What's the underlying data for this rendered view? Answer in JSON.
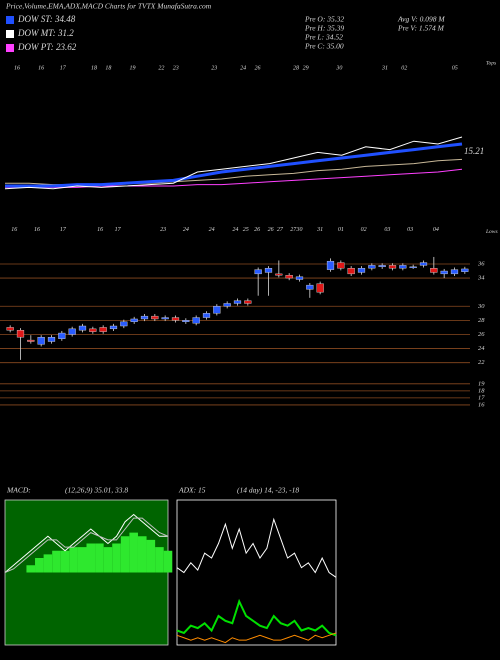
{
  "header": {
    "title": "Price,Volume,EMA,ADX,MACD Charts for TVTX MunafaSutra.com",
    "legend": [
      {
        "name": "DOW ST: 34.48",
        "color": "#2050ff"
      },
      {
        "name": "DOW MT: 31.2",
        "color": "#ffffff"
      },
      {
        "name": "DOW PT: 23.62",
        "color": "#ff40ff"
      }
    ],
    "stats_left": [
      "Pre O: 35.32",
      "Pre H: 35.39",
      "Pre L: 34.52",
      "Pre C: 35.00"
    ],
    "stats_right": [
      "Avg V: 0.098 M",
      "Pre V: 1.574 M"
    ]
  },
  "chart_data": [
    {
      "type": "line",
      "label": "Tops",
      "annotation": "15.21",
      "ylim": [
        0,
        100
      ],
      "xticks": [
        {
          "value": 0.5,
          "label": "16"
        },
        {
          "value": 1.5,
          "label": "16"
        },
        {
          "value": 2.4,
          "label": "17"
        },
        {
          "value": 3.7,
          "label": "18"
        },
        {
          "value": 4.3,
          "label": "18"
        },
        {
          "value": 5.3,
          "label": "19"
        },
        {
          "value": 6.5,
          "label": "22"
        },
        {
          "value": 7.1,
          "label": "23"
        },
        {
          "value": 8.7,
          "label": "23"
        },
        {
          "value": 9.9,
          "label": "24"
        },
        {
          "value": 10.5,
          "label": "26"
        },
        {
          "value": 12.1,
          "label": "28"
        },
        {
          "value": 12.5,
          "label": "29"
        },
        {
          "value": 13.9,
          "label": "30"
        },
        {
          "value": 15.8,
          "label": "31"
        },
        {
          "value": 16.6,
          "label": "02"
        },
        {
          "value": 18.7,
          "label": "05"
        }
      ],
      "series": [
        {
          "color": "#ff40ff",
          "values": [
            9,
            9,
            9,
            9,
            10,
            10,
            10,
            10,
            11,
            11,
            12,
            13,
            14,
            15,
            16,
            17,
            18,
            19,
            20,
            22
          ]
        },
        {
          "color": "#c8b898",
          "values": [
            12,
            12,
            11,
            11,
            11,
            12,
            12,
            13,
            14,
            15,
            17,
            18,
            19,
            21,
            22,
            24,
            25,
            26,
            28,
            29
          ]
        },
        {
          "color": "#2050ff",
          "width": 3,
          "values": [
            10,
            10,
            10,
            11,
            11,
            12,
            13,
            14,
            17,
            20,
            22,
            24,
            26,
            28,
            30,
            32,
            34,
            36,
            38,
            40
          ]
        },
        {
          "color": "#ffffff",
          "values": [
            8,
            9,
            8,
            10,
            9,
            10,
            11,
            12,
            20,
            22,
            24,
            26,
            30,
            34,
            32,
            38,
            36,
            42,
            40,
            45
          ]
        }
      ]
    },
    {
      "type": "candlestick",
      "label": "Lows",
      "ylim": [
        15,
        41
      ],
      "yticks": [
        36,
        34,
        30,
        28,
        26,
        24,
        22,
        19,
        18,
        17,
        16
      ],
      "up_color": "#2a5cff",
      "down_color": "#e01818",
      "grid_color": "#8a4a20",
      "xticks": [
        {
          "value": 0.4,
          "label": "16"
        },
        {
          "value": 2.6,
          "label": "16"
        },
        {
          "value": 5.1,
          "label": "17"
        },
        {
          "value": 8.7,
          "label": "16"
        },
        {
          "value": 10.4,
          "label": "17"
        },
        {
          "value": 14.8,
          "label": "23"
        },
        {
          "value": 17.0,
          "label": "24"
        },
        {
          "value": 19.5,
          "label": "24"
        },
        {
          "value": 21.8,
          "label": "24"
        },
        {
          "value": 22.8,
          "label": "25"
        },
        {
          "value": 23.9,
          "label": "26"
        },
        {
          "value": 25.2,
          "label": "26"
        },
        {
          "value": 26.1,
          "label": "27"
        },
        {
          "value": 27.4,
          "label": "27"
        },
        {
          "value": 28.0,
          "label": "30"
        },
        {
          "value": 30.0,
          "label": "31"
        },
        {
          "value": 32.0,
          "label": "01"
        },
        {
          "value": 34.2,
          "label": "02"
        },
        {
          "value": 36.5,
          "label": "03"
        },
        {
          "value": 38.7,
          "label": "03"
        },
        {
          "value": 41.2,
          "label": "04"
        }
      ],
      "open": [
        27.0,
        26.6,
        25.2,
        24.6,
        25.0,
        25.4,
        26.0,
        26.6,
        26.8,
        27.0,
        26.8,
        27.2,
        27.8,
        28.2,
        28.6,
        28.2,
        28.4,
        27.8,
        27.6,
        28.4,
        29.0,
        30.0,
        30.4,
        30.8,
        34.6,
        34.8,
        34.6,
        34.4,
        33.8,
        32.4,
        33.2,
        35.2,
        36.2,
        35.4,
        34.8,
        35.4,
        35.6,
        35.8,
        35.4,
        35.6,
        35.8,
        35.4,
        34.6,
        34.6,
        34.9
      ],
      "high": [
        27.3,
        26.9,
        25.9,
        25.9,
        25.9,
        26.5,
        27.1,
        27.5,
        27.1,
        27.3,
        27.5,
        28.1,
        28.5,
        28.9,
        28.9,
        28.7,
        28.7,
        28.3,
        28.7,
        29.3,
        30.3,
        30.7,
        31.1,
        31.1,
        35.5,
        35.7,
        36.5,
        34.7,
        34.5,
        33.3,
        33.5,
        36.8,
        36.5,
        35.7,
        35.7,
        36.1,
        36.1,
        36.1,
        36.1,
        35.9,
        36.5,
        37.0,
        35.3,
        35.5,
        35.6
      ],
      "low": [
        26.3,
        22.4,
        24.7,
        24.3,
        24.7,
        25.1,
        25.7,
        26.3,
        26.1,
        26.1,
        26.5,
        26.9,
        27.5,
        27.9,
        27.9,
        27.9,
        27.7,
        27.5,
        27.3,
        28.1,
        28.7,
        29.7,
        30.1,
        30.1,
        31.5,
        31.5,
        34.1,
        33.7,
        33.5,
        31.2,
        31.7,
        34.9,
        35.1,
        34.3,
        34.5,
        35.1,
        35.3,
        35.1,
        35.1,
        35.3,
        35.5,
        34.5,
        34.0,
        34.3,
        34.6
      ],
      "close": [
        26.6,
        25.6,
        25.0,
        25.6,
        25.6,
        26.2,
        26.8,
        27.2,
        26.4,
        26.4,
        27.2,
        27.8,
        28.2,
        28.6,
        28.2,
        28.4,
        28.0,
        28.0,
        28.4,
        29.0,
        30.0,
        30.4,
        30.8,
        30.4,
        35.2,
        35.4,
        34.4,
        34.0,
        34.2,
        33.0,
        32.0,
        36.4,
        35.4,
        34.6,
        35.4,
        35.8,
        35.8,
        35.4,
        35.8,
        35.6,
        36.2,
        34.8,
        35.0,
        35.2,
        35.3
      ]
    },
    {
      "type": "macd",
      "title": "MACD:",
      "subtitle": "(12,26,9) 35.01, 33.8",
      "background": "#006400",
      "ylim": [
        -10,
        10
      ],
      "series": [
        {
          "kind": "bar",
          "color": "#2ee82e",
          "values": [
            0,
            0,
            0,
            1,
            2,
            2.5,
            3,
            3,
            3.5,
            3.5,
            4,
            4,
            3.5,
            4,
            5,
            5.5,
            5,
            4.5,
            3.5,
            3
          ]
        },
        {
          "color": "#ffffff",
          "values": [
            0,
            1,
            2,
            3,
            4,
            5,
            4,
            3,
            4,
            5,
            6,
            5,
            4,
            5,
            7,
            8,
            7,
            6,
            5,
            5
          ]
        },
        {
          "color": "#c0c0c0",
          "values": [
            0,
            0.5,
            1.5,
            2.5,
            3.5,
            4.5,
            4.5,
            3.5,
            3.5,
            4.5,
            5.5,
            5,
            4.5,
            4.5,
            6,
            7.5,
            7.5,
            6.5,
            5.5,
            5
          ]
        }
      ]
    },
    {
      "type": "line",
      "title": "ADX: 15",
      "subtitle": "(14 day) 14, -23, -18",
      "background": "#000000",
      "border": "#ffffff",
      "ylim": [
        0,
        60
      ],
      "series": [
        {
          "color": "#ffffff",
          "values": [
            32,
            30,
            34,
            31,
            38,
            36,
            42,
            50,
            40,
            48,
            38,
            42,
            36,
            40,
            52,
            44,
            36,
            38,
            32,
            34,
            30,
            36,
            30,
            28
          ]
        },
        {
          "color": "#00e000",
          "width": 2,
          "values": [
            6,
            5,
            8,
            7,
            9,
            6,
            12,
            10,
            9,
            18,
            12,
            10,
            8,
            7,
            12,
            9,
            8,
            10,
            6,
            7,
            6,
            8,
            5,
            4
          ]
        },
        {
          "color": "#ff8c00",
          "values": [
            4,
            3,
            2,
            3,
            2,
            3,
            2,
            1,
            3,
            2,
            2,
            3,
            4,
            3,
            2,
            2,
            3,
            4,
            3,
            2,
            4,
            3,
            4,
            5
          ]
        }
      ]
    }
  ]
}
